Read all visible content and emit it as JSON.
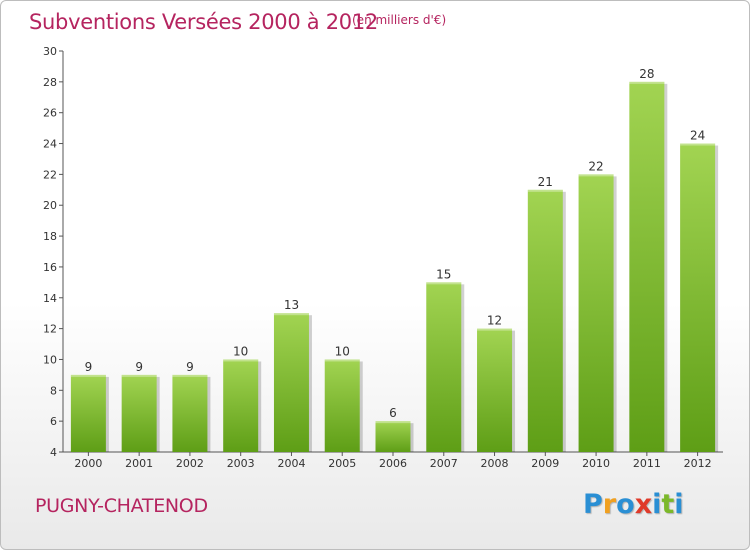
{
  "header": {
    "title": "Subventions Versées 2000 à 2012",
    "subtitle": "(en milliers d'€)"
  },
  "footer": {
    "place": "PUGNY-CHATENOD",
    "logo_letters": [
      "P",
      "r",
      "o",
      "x",
      "i",
      "t",
      "i"
    ],
    "logo_colors": [
      "#2a8fd4",
      "#f0a020",
      "#2a8fd4",
      "#e03a2a",
      "#2a8fd4",
      "#7cb82a",
      "#2a8fd4"
    ]
  },
  "chart_data": {
    "type": "bar",
    "categories": [
      "2000",
      "2001",
      "2002",
      "2003",
      "2004",
      "2005",
      "2006",
      "2007",
      "2008",
      "2009",
      "2010",
      "2011",
      "2012"
    ],
    "values": [
      9,
      9,
      9,
      10,
      13,
      10,
      6,
      15,
      12,
      21,
      22,
      28,
      24
    ],
    "title": "Subventions Versées 2000 à 2012",
    "subtitle": "(en milliers d'€)",
    "ylim": [
      4,
      30
    ],
    "yticks": [
      4,
      6,
      8,
      10,
      12,
      14,
      16,
      18,
      20,
      22,
      24,
      26,
      28,
      30
    ],
    "grid": false,
    "bar_color_top": "#a2d452",
    "bar_color_bottom": "#5e9e16",
    "data_labels": true
  }
}
